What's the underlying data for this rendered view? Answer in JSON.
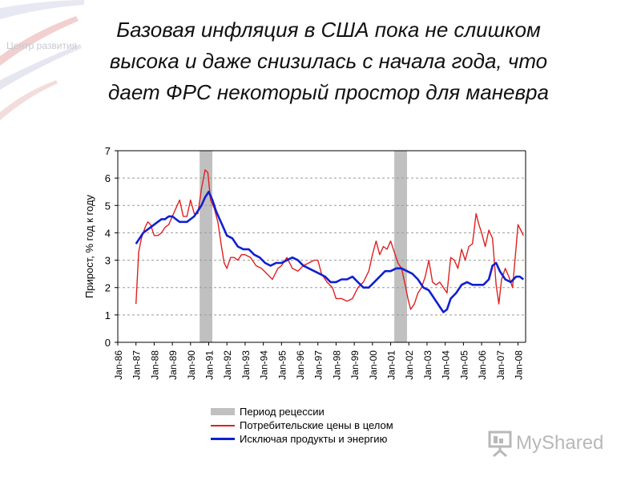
{
  "header": {
    "title_lines": [
      "Базовая инфляция в США пока не слишком",
      "высока и даже снизилась с начала года, что",
      "дает ФРС некоторый простор для маневра"
    ],
    "corner_logo": "Центр развития"
  },
  "watermark": {
    "text": "MyShared"
  },
  "colors": {
    "recession": "#c0c0c0",
    "cpi": "#e02020",
    "core": "#1020d0",
    "grid": "#9a9a9a"
  },
  "chart_data": {
    "type": "line",
    "ylabel": "Прирост, % год к году",
    "xlabel": "",
    "ylim": [
      0,
      7
    ],
    "yticks": [
      0,
      1,
      2,
      3,
      4,
      5,
      6,
      7
    ],
    "x_range": [
      1986.0,
      2008.42
    ],
    "x_ticks": [
      "Jan-86",
      "Jan-87",
      "Jan-88",
      "Jan-89",
      "Jan-90",
      "Jan-91",
      "Jan-92",
      "Jan-93",
      "Jan-94",
      "Jan-95",
      "Jan-96",
      "Jan-97",
      "Jan-98",
      "Jan-99",
      "Jan-00",
      "Jan-01",
      "Jan-02",
      "Jan-03",
      "Jan-04",
      "Jan-05",
      "Jan-06",
      "Jan-07",
      "Jan-08"
    ],
    "grid": "horizontal dashed",
    "recessions": [
      {
        "start": 1990.5,
        "end": 1991.2
      },
      {
        "start": 2001.2,
        "end": 2001.9
      }
    ],
    "legend": [
      {
        "label": "Период рецессии",
        "kind": "recession"
      },
      {
        "label": "Потребительские цены в целом",
        "kind": "cpi"
      },
      {
        "label": "Исключая продукты и энергию",
        "kind": "core"
      }
    ],
    "series": [
      {
        "key": "cpi",
        "x": [
          1987.0,
          1987.15,
          1987.3,
          1987.5,
          1987.65,
          1987.8,
          1988.0,
          1988.2,
          1988.4,
          1988.6,
          1988.8,
          1989.0,
          1989.2,
          1989.4,
          1989.6,
          1989.8,
          1990.0,
          1990.2,
          1990.4,
          1990.6,
          1990.8,
          1990.95,
          1991.1,
          1991.3,
          1991.5,
          1991.7,
          1991.85,
          1992.0,
          1992.2,
          1992.4,
          1992.6,
          1992.8,
          1993.0,
          1993.3,
          1993.6,
          1993.9,
          1994.2,
          1994.5,
          1994.8,
          1995.0,
          1995.3,
          1995.6,
          1995.9,
          1996.2,
          1996.5,
          1996.8,
          1997.0,
          1997.2,
          1997.5,
          1997.8,
          1998.0,
          1998.3,
          1998.6,
          1998.9,
          1999.2,
          1999.5,
          1999.8,
          2000.0,
          2000.2,
          2000.4,
          2000.6,
          2000.8,
          2001.0,
          2001.2,
          2001.4,
          2001.6,
          2001.8,
          2001.95,
          2002.1,
          2002.3,
          2002.5,
          2002.7,
          2002.9,
          2003.1,
          2003.3,
          2003.5,
          2003.7,
          2003.9,
          2004.1,
          2004.3,
          2004.5,
          2004.7,
          2004.9,
          2005.1,
          2005.3,
          2005.5,
          2005.7,
          2005.85,
          2006.0,
          2006.2,
          2006.4,
          2006.6,
          2006.8,
          2006.95,
          2007.1,
          2007.3,
          2007.5,
          2007.7,
          2007.9,
          2008.0,
          2008.15,
          2008.3
        ],
        "values": [
          1.4,
          3.3,
          3.8,
          4.2,
          4.4,
          4.3,
          3.9,
          3.9,
          4.0,
          4.2,
          4.3,
          4.6,
          4.9,
          5.2,
          4.6,
          4.6,
          5.2,
          4.7,
          4.7,
          5.6,
          6.3,
          6.2,
          5.2,
          4.9,
          4.4,
          3.5,
          2.9,
          2.7,
          3.1,
          3.1,
          3.0,
          3.2,
          3.2,
          3.1,
          2.8,
          2.7,
          2.5,
          2.3,
          2.7,
          2.8,
          3.1,
          2.7,
          2.6,
          2.8,
          2.9,
          3.0,
          3.0,
          2.5,
          2.2,
          2.0,
          1.6,
          1.6,
          1.5,
          1.6,
          2.0,
          2.2,
          2.6,
          3.2,
          3.7,
          3.2,
          3.5,
          3.4,
          3.7,
          3.3,
          2.9,
          2.7,
          2.1,
          1.6,
          1.2,
          1.4,
          1.8,
          2.0,
          2.4,
          3.0,
          2.2,
          2.1,
          2.2,
          2.0,
          1.8,
          3.1,
          3.0,
          2.7,
          3.4,
          3.0,
          3.5,
          3.6,
          4.7,
          4.3,
          4.0,
          3.5,
          4.1,
          3.8,
          2.1,
          1.4,
          2.3,
          2.7,
          2.4,
          2.0,
          3.5,
          4.3,
          4.1,
          3.9
        ]
      },
      {
        "key": "core",
        "x": [
          1987.0,
          1987.2,
          1987.4,
          1987.6,
          1987.8,
          1988.0,
          1988.2,
          1988.4,
          1988.6,
          1988.8,
          1989.0,
          1989.2,
          1989.4,
          1989.6,
          1989.8,
          1990.0,
          1990.2,
          1990.4,
          1990.6,
          1990.8,
          1991.0,
          1991.2,
          1991.4,
          1991.6,
          1991.8,
          1992.0,
          1992.3,
          1992.6,
          1992.9,
          1993.2,
          1993.5,
          1993.8,
          1994.1,
          1994.4,
          1994.7,
          1995.0,
          1995.3,
          1995.6,
          1995.9,
          1996.2,
          1996.5,
          1996.8,
          1997.1,
          1997.4,
          1997.7,
          1998.0,
          1998.3,
          1998.6,
          1998.9,
          1999.2,
          1999.5,
          1999.8,
          2000.1,
          2000.4,
          2000.7,
          2001.0,
          2001.3,
          2001.6,
          2001.9,
          2002.2,
          2002.5,
          2002.8,
          2003.1,
          2003.4,
          2003.7,
          2003.9,
          2004.1,
          2004.3,
          2004.6,
          2004.9,
          2005.2,
          2005.5,
          2005.8,
          2006.1,
          2006.4,
          2006.6,
          2006.8,
          2007.0,
          2007.3,
          2007.6,
          2007.9,
          2008.1,
          2008.3
        ],
        "values": [
          3.6,
          3.8,
          4.0,
          4.1,
          4.2,
          4.3,
          4.4,
          4.5,
          4.5,
          4.6,
          4.6,
          4.5,
          4.4,
          4.4,
          4.4,
          4.5,
          4.6,
          4.8,
          5.0,
          5.3,
          5.5,
          5.2,
          4.8,
          4.5,
          4.2,
          3.9,
          3.8,
          3.5,
          3.4,
          3.4,
          3.2,
          3.1,
          2.9,
          2.8,
          2.9,
          2.9,
          3.0,
          3.1,
          3.0,
          2.8,
          2.7,
          2.6,
          2.5,
          2.4,
          2.2,
          2.2,
          2.3,
          2.3,
          2.4,
          2.2,
          2.0,
          2.0,
          2.2,
          2.4,
          2.6,
          2.6,
          2.7,
          2.7,
          2.6,
          2.5,
          2.3,
          2.0,
          1.9,
          1.6,
          1.3,
          1.1,
          1.2,
          1.6,
          1.8,
          2.1,
          2.2,
          2.1,
          2.1,
          2.1,
          2.3,
          2.8,
          2.9,
          2.6,
          2.3,
          2.2,
          2.4,
          2.4,
          2.3
        ]
      }
    ]
  }
}
